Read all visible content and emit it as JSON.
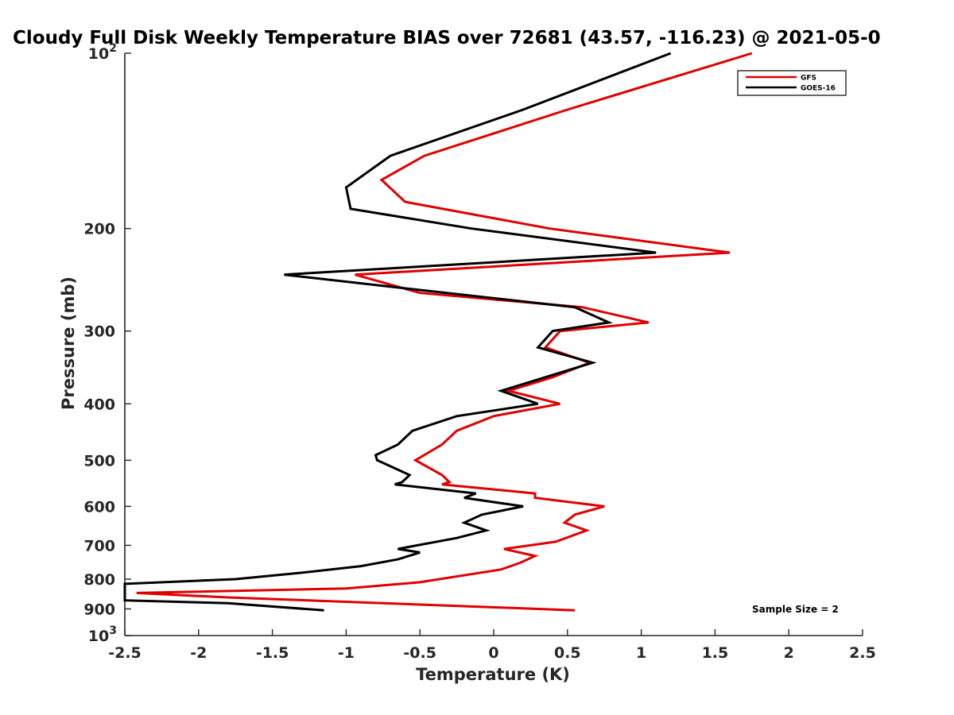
{
  "chart_data": {
    "type": "line",
    "title": "Cloudy Full Disk Weekly Temperature BIAS over 72681 (43.57, -116.23) @ 2021-05-0",
    "xlabel": "Temperature (K)",
    "ylabel": "Pressure (mb)",
    "xlim": [
      -2.5,
      2.5
    ],
    "ylim": [
      100,
      1000
    ],
    "y_scale": "log",
    "y_reversed": true,
    "x_ticks": [
      "-2.5",
      "-2",
      "-1.5",
      "-1",
      "-0.5",
      "0",
      "0.5",
      "1",
      "1.5",
      "2",
      "2.5"
    ],
    "y_ticks": [
      {
        "value": 100,
        "base": "10",
        "exp": "2"
      },
      {
        "value": 200,
        "label": "200"
      },
      {
        "value": 300,
        "label": "300"
      },
      {
        "value": 400,
        "label": "400"
      },
      {
        "value": 500,
        "label": "500"
      },
      {
        "value": 600,
        "label": "600"
      },
      {
        "value": 700,
        "label": "700"
      },
      {
        "value": 800,
        "label": "800"
      },
      {
        "value": 900,
        "label": "900"
      },
      {
        "value": 1000,
        "base": "10",
        "exp": "3"
      }
    ],
    "legend_position": "top-right",
    "annotation": "Sample Size = 2",
    "grid": false,
    "series": [
      {
        "name": "GFS",
        "color": "#e00000",
        "points": [
          [
            1.75,
            100
          ],
          [
            0.5,
            125
          ],
          [
            -0.47,
            150
          ],
          [
            -0.76,
            165
          ],
          [
            -0.6,
            180
          ],
          [
            0.38,
            200
          ],
          [
            1.6,
            220
          ],
          [
            -0.94,
            240
          ],
          [
            -0.5,
            258
          ],
          [
            0.6,
            273
          ],
          [
            1.05,
            290
          ],
          [
            0.45,
            300
          ],
          [
            0.35,
            320
          ],
          [
            0.65,
            340
          ],
          [
            0.4,
            360
          ],
          [
            0.1,
            380
          ],
          [
            0.45,
            400
          ],
          [
            0,
            420
          ],
          [
            -0.25,
            445
          ],
          [
            -0.35,
            470
          ],
          [
            -0.53,
            500
          ],
          [
            -0.35,
            530
          ],
          [
            -0.3,
            545
          ],
          [
            -0.35,
            550
          ],
          [
            0.28,
            570
          ],
          [
            0.28,
            580
          ],
          [
            0.75,
            600
          ],
          [
            0.55,
            620
          ],
          [
            0.48,
            640
          ],
          [
            0.63,
            660
          ],
          [
            0.42,
            690
          ],
          [
            0.07,
            710
          ],
          [
            0.28,
            730
          ],
          [
            0.18,
            750
          ],
          [
            0.05,
            770
          ],
          [
            -0.5,
            810
          ],
          [
            -1.0,
            830
          ],
          [
            -2.42,
            845
          ],
          [
            -1.8,
            860
          ],
          [
            0.55,
            905
          ]
        ]
      },
      {
        "name": "GOES-16",
        "color": "#000000",
        "points": [
          [
            1.2,
            100
          ],
          [
            0.2,
            125
          ],
          [
            -0.7,
            150
          ],
          [
            -1.0,
            170
          ],
          [
            -0.97,
            185
          ],
          [
            -0.15,
            200
          ],
          [
            1.1,
            220
          ],
          [
            -1.42,
            240
          ],
          [
            -0.5,
            255
          ],
          [
            0.55,
            273
          ],
          [
            0.78,
            290
          ],
          [
            0.4,
            300
          ],
          [
            0.3,
            320
          ],
          [
            0.67,
            340
          ],
          [
            0.35,
            360
          ],
          [
            0.05,
            380
          ],
          [
            0.3,
            400
          ],
          [
            -0.25,
            420
          ],
          [
            -0.55,
            445
          ],
          [
            -0.65,
            470
          ],
          [
            -0.8,
            490
          ],
          [
            -0.79,
            500
          ],
          [
            -0.57,
            530
          ],
          [
            -0.62,
            545
          ],
          [
            -0.67,
            550
          ],
          [
            -0.12,
            570
          ],
          [
            -0.2,
            580
          ],
          [
            0.2,
            600
          ],
          [
            -0.08,
            620
          ],
          [
            -0.2,
            640
          ],
          [
            -0.05,
            660
          ],
          [
            -0.25,
            680
          ],
          [
            -0.65,
            710
          ],
          [
            -0.5,
            720
          ],
          [
            -0.65,
            740
          ],
          [
            -0.9,
            760
          ],
          [
            -1.3,
            780
          ],
          [
            -1.75,
            800
          ],
          [
            -2.5,
            815
          ],
          [
            -2.5,
            835
          ],
          [
            -2.5,
            870
          ],
          [
            -1.8,
            880
          ],
          [
            -1.15,
            905
          ]
        ]
      }
    ]
  }
}
